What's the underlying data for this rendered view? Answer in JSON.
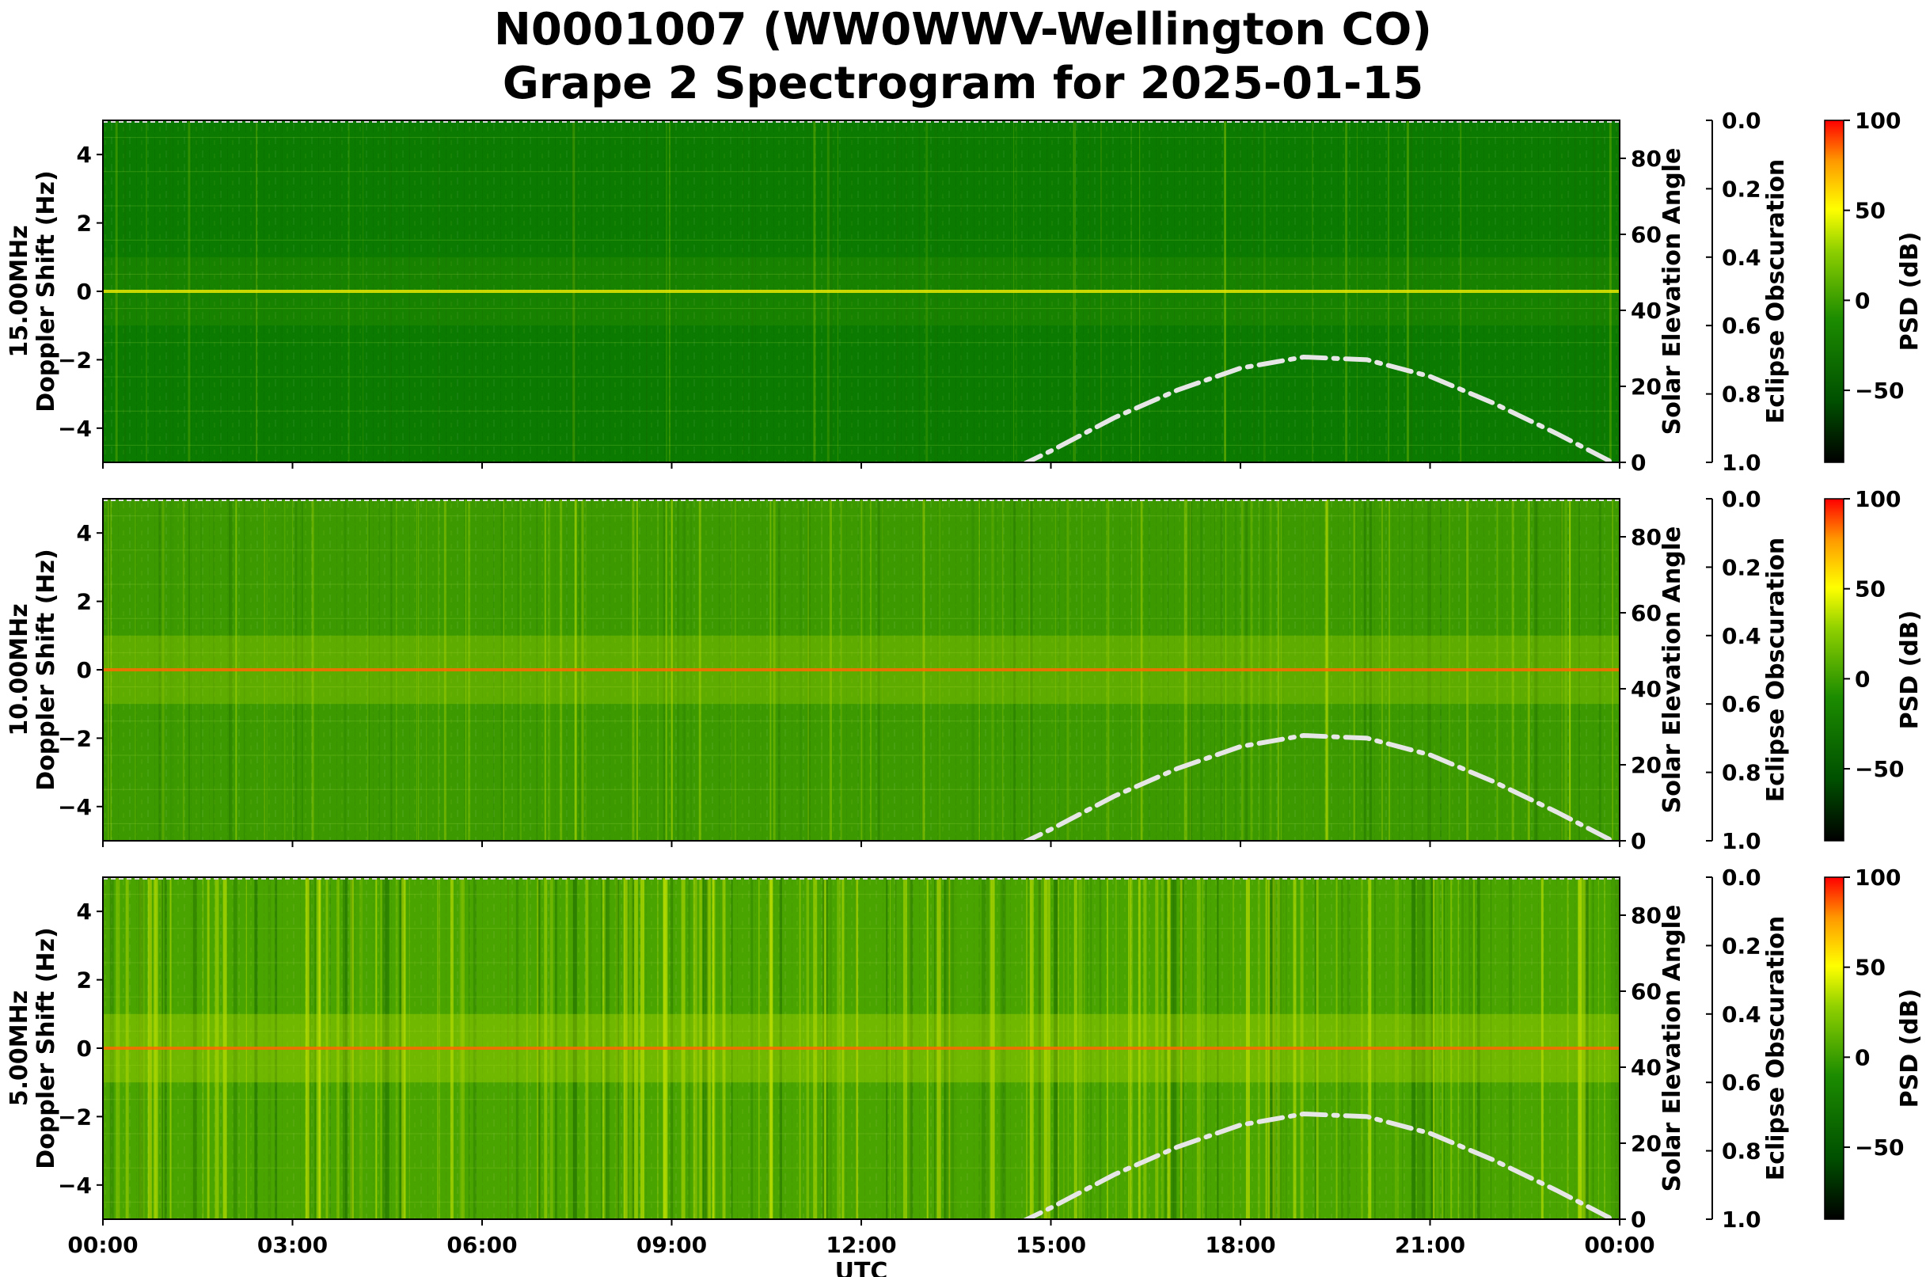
{
  "title_lines": [
    "N0001007 (WW0WWV-Wellington CO)",
    "Grape 2 Spectrogram for 2025-01-15"
  ],
  "colors": {
    "background": "#ffffff",
    "solar_curve": "#e6e6e6",
    "colormap": [
      "#000000",
      "#006400",
      "#4fb800",
      "#c8e000",
      "#ffff00",
      "#ffa000",
      "#ff0000"
    ]
  },
  "chart_data": [
    {
      "type": "heatmap",
      "name": "15.00MHz",
      "ylabel_lines": [
        "15.00MHz",
        "Doppler Shift (Hz)"
      ],
      "xlabel": "",
      "ylim": [
        -5,
        5
      ],
      "yticks": [
        "4",
        "2",
        "0",
        "−2",
        "−4"
      ],
      "right_axis": {
        "label": "Solar Elevation Angle",
        "ylim": [
          0,
          90
        ],
        "ticks": [
          "80",
          "60",
          "40",
          "20",
          "0"
        ]
      },
      "eclipse_axis": {
        "label": "Eclipse Obscuration",
        "ylim": [
          0.0,
          1.0
        ],
        "ticks": [
          "0.0",
          "0.2",
          "0.4",
          "0.6",
          "0.8",
          "1.0"
        ]
      },
      "colorbar": {
        "label": "PSD (dB)",
        "range": [
          -90,
          100
        ],
        "ticks": [
          "100",
          "50",
          "0",
          "−50"
        ]
      },
      "solar_elevation_deg": {
        "time_h": [
          14.5,
          15,
          16,
          17,
          18,
          19,
          20,
          21,
          22,
          23,
          24
        ],
        "values": [
          -1,
          3,
          11.7,
          19,
          24.8,
          27.7,
          27,
          22.6,
          15.6,
          7.6,
          -1
        ]
      }
    },
    {
      "type": "heatmap",
      "name": "10.00MHz",
      "ylabel_lines": [
        "10.00MHz",
        "Doppler Shift (Hz)"
      ],
      "xlabel": "",
      "ylim": [
        -5,
        5
      ],
      "yticks": [
        "4",
        "2",
        "0",
        "−2",
        "−4"
      ],
      "right_axis": {
        "label": "Solar Elevation Angle",
        "ylim": [
          0,
          90
        ],
        "ticks": [
          "80",
          "60",
          "40",
          "20",
          "0"
        ]
      },
      "eclipse_axis": {
        "label": "Eclipse Obscuration",
        "ylim": [
          0.0,
          1.0
        ],
        "ticks": [
          "0.0",
          "0.2",
          "0.4",
          "0.6",
          "0.8",
          "1.0"
        ]
      },
      "colorbar": {
        "label": "PSD (dB)",
        "range": [
          -90,
          100
        ],
        "ticks": [
          "100",
          "50",
          "0",
          "−50"
        ]
      },
      "solar_elevation_deg": {
        "time_h": [
          14.5,
          15,
          16,
          17,
          18,
          19,
          20,
          21,
          22,
          23,
          24
        ],
        "values": [
          -1,
          3,
          11.7,
          19,
          24.8,
          27.7,
          27,
          22.6,
          15.6,
          7.6,
          -1
        ]
      }
    },
    {
      "type": "heatmap",
      "name": "5.00MHz",
      "ylabel_lines": [
        "5.00MHz",
        "Doppler Shift (Hz)"
      ],
      "xlabel": "UTC",
      "xticks": [
        "00:00",
        "03:00",
        "06:00",
        "09:00",
        "12:00",
        "15:00",
        "18:00",
        "21:00",
        "00:00"
      ],
      "ylim": [
        -5,
        5
      ],
      "yticks": [
        "4",
        "2",
        "0",
        "−2",
        "−4"
      ],
      "right_axis": {
        "label": "Solar Elevation Angle",
        "ylim": [
          0,
          90
        ],
        "ticks": [
          "80",
          "60",
          "40",
          "20",
          "0"
        ]
      },
      "eclipse_axis": {
        "label": "Eclipse Obscuration",
        "ylim": [
          0.0,
          1.0
        ],
        "ticks": [
          "0.0",
          "0.2",
          "0.4",
          "0.6",
          "0.8",
          "1.0"
        ]
      },
      "colorbar": {
        "label": "PSD (dB)",
        "range": [
          -90,
          100
        ],
        "ticks": [
          "100",
          "50",
          "0",
          "−50"
        ]
      },
      "solar_elevation_deg": {
        "time_h": [
          14.5,
          15,
          16,
          17,
          18,
          19,
          20,
          21,
          22,
          23,
          24
        ],
        "values": [
          -1,
          3,
          11.7,
          19,
          24.8,
          27.7,
          27,
          22.6,
          15.6,
          7.6,
          -1
        ]
      }
    }
  ]
}
